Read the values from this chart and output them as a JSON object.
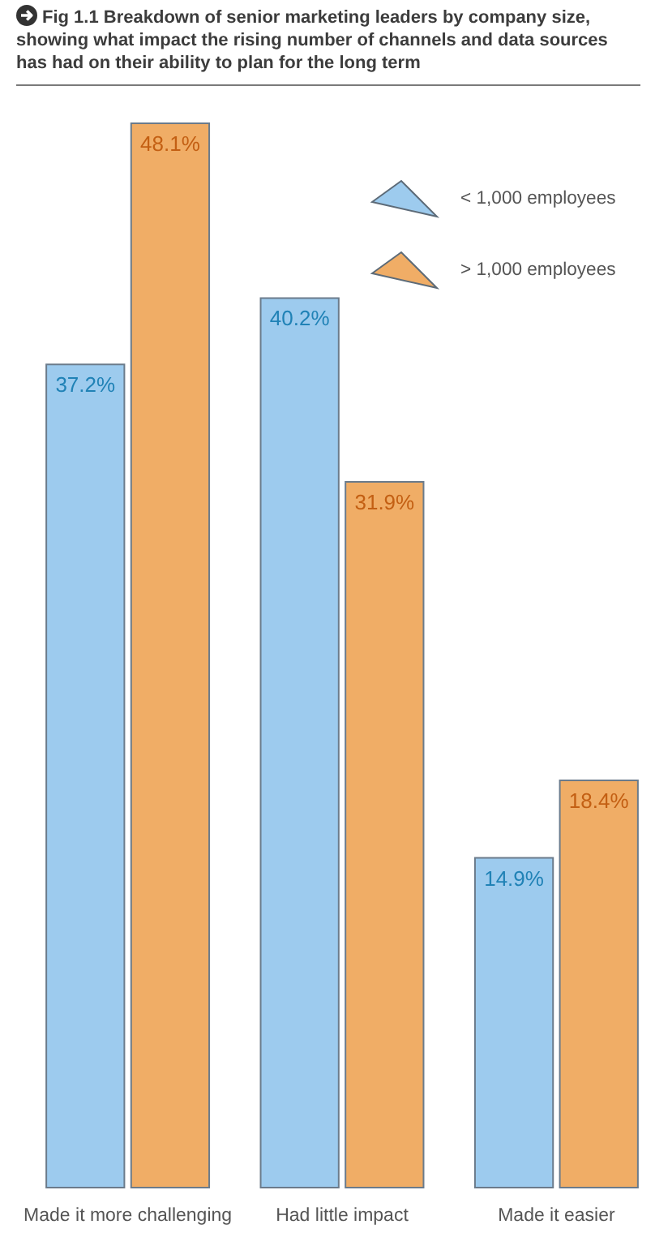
{
  "chart_data": {
    "type": "bar",
    "title": "Fig 1.1 Breakdown of senior marketing leaders by company size, showing what impact the rising number of channels and data sources has had on their ability to plan for the long term",
    "categories": [
      "Made it more challenging",
      "Had little impact",
      "Made it easier"
    ],
    "series": [
      {
        "name": "< 1,000 employees",
        "color": "#9dcbee",
        "values": [
          37.2,
          40.2,
          14.9
        ],
        "value_labels": [
          "37.2%",
          "40.2%",
          "14.9%"
        ]
      },
      {
        "name": "> 1,000 employees",
        "color": "#f0ad66",
        "values": [
          48.1,
          31.9,
          18.4
        ],
        "value_labels": [
          "48.1%",
          "31.9%",
          "18.4%"
        ]
      }
    ],
    "legend": "top right"
  }
}
